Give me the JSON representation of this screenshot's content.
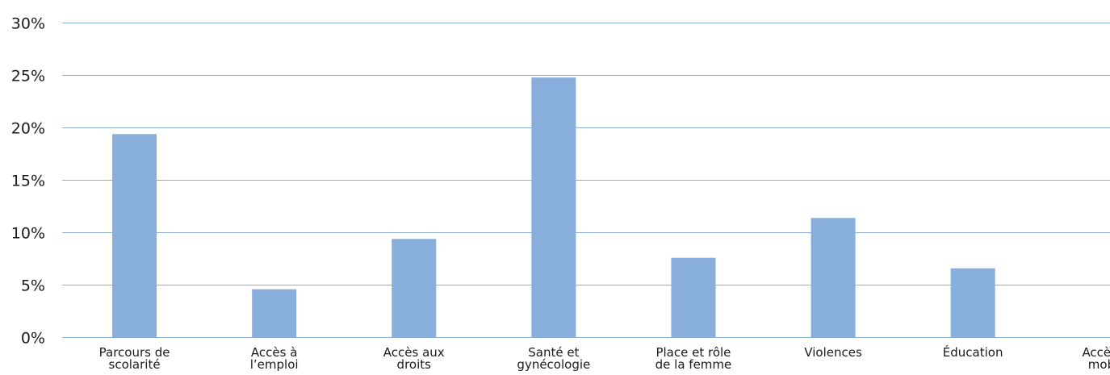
{
  "chart_data": {
    "type": "bar",
    "categories": [
      [
        "Parcours de",
        "scolarité"
      ],
      [
        "Accès à",
        "l’emploi"
      ],
      [
        "Accès aux",
        "droits"
      ],
      [
        "Santé et",
        "gynécologie"
      ],
      [
        "Place et rôle",
        "de la femme"
      ],
      [
        "Violences"
      ],
      [
        "Éducation"
      ],
      [
        "Accès à la",
        "mobilité"
      ]
    ],
    "values": [
      19.4,
      4.6,
      9.4,
      24.8,
      7.6,
      11.4,
      6.6,
      0
    ],
    "ylim": [
      0,
      30
    ],
    "yticks": [
      "0%",
      "5%",
      "10%",
      "15%",
      "20%",
      "25%",
      "30%"
    ],
    "title": "",
    "xlabel": "",
    "ylabel": "",
    "grid": true,
    "colors": {
      "bar": "#88aedb",
      "grid": "#8faed6",
      "text": "#1a1a1a"
    }
  }
}
